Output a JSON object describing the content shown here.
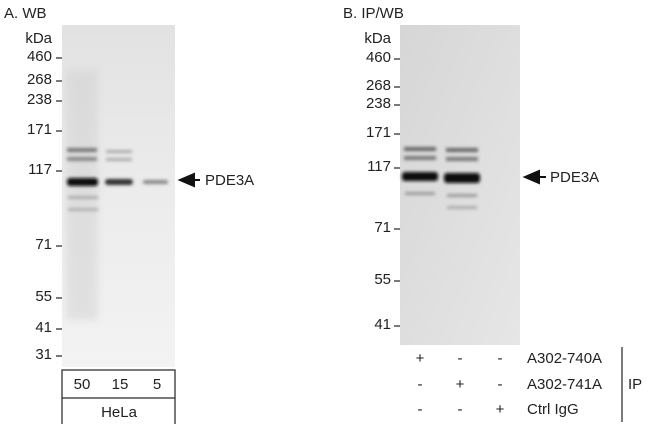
{
  "panels": [
    {
      "title": "A. WB",
      "marker_unit": "kDa",
      "markers": [
        "460",
        "268",
        "238",
        "171",
        "117",
        "71",
        "55",
        "41",
        "31"
      ],
      "band_label": "PDE3A",
      "lanes": [
        "50",
        "15",
        "5"
      ],
      "sample": "HeLa"
    },
    {
      "title": "B. IP/WB",
      "marker_unit": "kDa",
      "markers": [
        "460",
        "268",
        "238",
        "171",
        "117",
        "71",
        "55",
        "41"
      ],
      "band_label": "PDE3A",
      "ip_table": {
        "label": "IP",
        "rows": [
          {
            "antibody": "A302-740A",
            "lanes": [
              "+",
              "-",
              "-"
            ]
          },
          {
            "antibody": "A302-741A",
            "lanes": [
              "-",
              "+",
              "-"
            ]
          },
          {
            "antibody": "Ctrl IgG",
            "lanes": [
              "-",
              "-",
              "+"
            ]
          }
        ]
      }
    }
  ]
}
